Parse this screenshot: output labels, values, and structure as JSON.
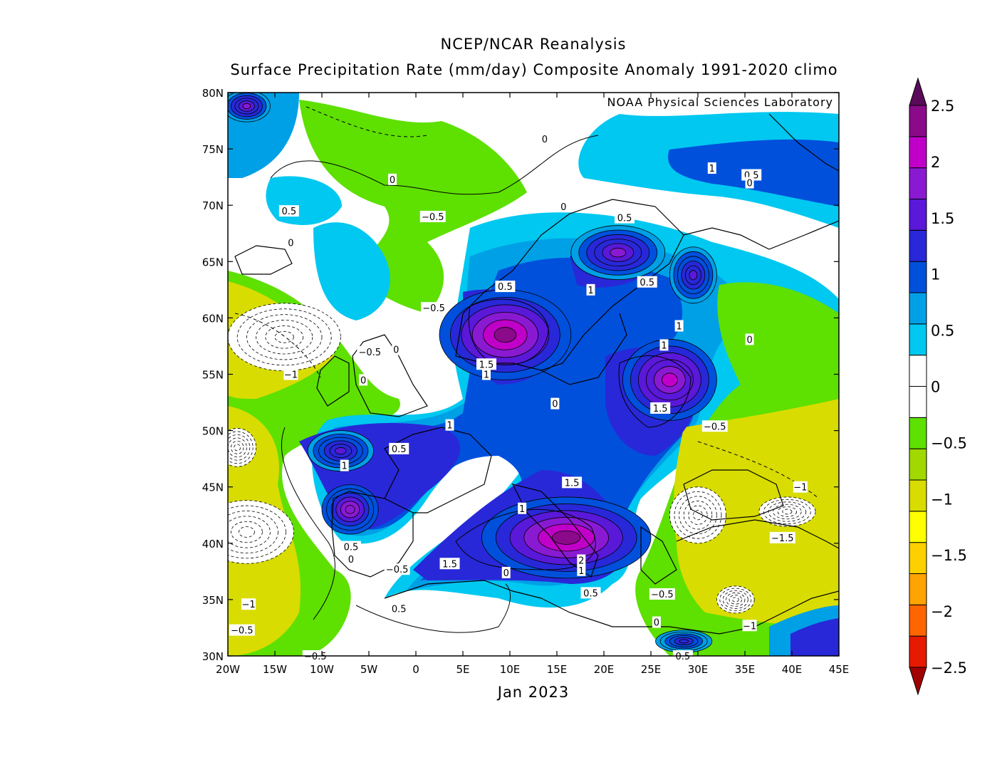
{
  "header": {
    "title": "NCEP/NCAR Reanalysis",
    "subtitle": "Surface Precipitation Rate (mm/day) Composite Anomaly 1991-2020 climo",
    "credit": "NOAA Physical Sciences Laboratory"
  },
  "footer": {
    "period": "Jan 2023"
  },
  "map": {
    "lon_range": [
      -20,
      45
    ],
    "lat_range": [
      30,
      80
    ],
    "lon_ticks": [
      "20W",
      "15W",
      "10W",
      "5W",
      "0",
      "5E",
      "10E",
      "15E",
      "20E",
      "25E",
      "30E",
      "35E",
      "40E",
      "45E"
    ],
    "lat_ticks": [
      "30N",
      "35N",
      "40N",
      "45N",
      "50N",
      "55N",
      "60N",
      "65N",
      "70N",
      "75N",
      "80N"
    ],
    "contour_labels": [
      {
        "text": "0",
        "lon": -2.5,
        "lat": 72.3
      },
      {
        "text": "0.5",
        "lon": -13.5,
        "lat": 69.5
      },
      {
        "text": "0",
        "lon": -13.3,
        "lat": 66.7
      },
      {
        "text": "-0.5",
        "lon": 1.8,
        "lat": 69.0
      },
      {
        "text": "0",
        "lon": 13.7,
        "lat": 75.9
      },
      {
        "text": "0",
        "lon": 15.7,
        "lat": 69.9
      },
      {
        "text": "0.5",
        "lon": 22.2,
        "lat": 68.9
      },
      {
        "text": "1",
        "lon": 31.5,
        "lat": 73.3
      },
      {
        "text": "0.5",
        "lon": 35.7,
        "lat": 72.7
      },
      {
        "text": "0",
        "lon": 35.5,
        "lat": 72.0
      },
      {
        "text": "0.5",
        "lon": 9.5,
        "lat": 62.8
      },
      {
        "text": "1",
        "lon": 18.6,
        "lat": 62.5
      },
      {
        "text": "0.5",
        "lon": 24.6,
        "lat": 63.2
      },
      {
        "text": "-0.5",
        "lon": 1.9,
        "lat": 60.9
      },
      {
        "text": "1",
        "lon": 28.0,
        "lat": 59.3
      },
      {
        "text": "1",
        "lon": 26.4,
        "lat": 57.6
      },
      {
        "text": "0",
        "lon": 35.5,
        "lat": 58.1
      },
      {
        "text": "-0.5",
        "lon": -4.9,
        "lat": 57.0
      },
      {
        "text": "0",
        "lon": -2.1,
        "lat": 57.2
      },
      {
        "text": "1.5",
        "lon": 7.5,
        "lat": 55.9
      },
      {
        "text": "1",
        "lon": 7.5,
        "lat": 55.0
      },
      {
        "text": "-1",
        "lon": -13.3,
        "lat": 55.0
      },
      {
        "text": "0",
        "lon": -5.6,
        "lat": 54.5
      },
      {
        "text": "0",
        "lon": 14.8,
        "lat": 52.4
      },
      {
        "text": "1.5",
        "lon": 26.0,
        "lat": 52.0
      },
      {
        "text": "-0.5",
        "lon": 31.8,
        "lat": 50.4
      },
      {
        "text": "1",
        "lon": 3.6,
        "lat": 50.5
      },
      {
        "text": "0.5",
        "lon": -1.8,
        "lat": 48.4
      },
      {
        "text": "1",
        "lon": -7.6,
        "lat": 46.9
      },
      {
        "text": "1.5",
        "lon": 16.6,
        "lat": 45.4
      },
      {
        "text": "-1",
        "lon": 40.9,
        "lat": 45.0
      },
      {
        "text": "1",
        "lon": 11.3,
        "lat": 43.1
      },
      {
        "text": "-1.5",
        "lon": 39.0,
        "lat": 40.5
      },
      {
        "text": "0.5",
        "lon": -6.9,
        "lat": 39.7
      },
      {
        "text": "0",
        "lon": -6.9,
        "lat": 38.6
      },
      {
        "text": "-0.5",
        "lon": -2.0,
        "lat": 37.7
      },
      {
        "text": "1.5",
        "lon": 3.6,
        "lat": 38.2
      },
      {
        "text": "2",
        "lon": 17.6,
        "lat": 38.5
      },
      {
        "text": "1",
        "lon": 17.6,
        "lat": 37.6
      },
      {
        "text": "0",
        "lon": 9.6,
        "lat": 37.4
      },
      {
        "text": "0.5",
        "lon": 18.6,
        "lat": 35.6
      },
      {
        "text": "-0.5",
        "lon": 26.2,
        "lat": 35.5
      },
      {
        "text": "-1",
        "lon": -17.8,
        "lat": 34.6
      },
      {
        "text": "0.5",
        "lon": -1.8,
        "lat": 34.2
      },
      {
        "text": "0",
        "lon": 25.6,
        "lat": 33.0
      },
      {
        "text": "-1",
        "lon": 35.5,
        "lat": 32.7
      },
      {
        "text": "-0.5",
        "lon": -18.5,
        "lat": 32.3
      },
      {
        "text": "-0.5",
        "lon": -10.7,
        "lat": 30.0
      },
      {
        "text": "0.5",
        "lon": 28.4,
        "lat": 30.0
      }
    ],
    "blobs": [
      {
        "lon": 9.5,
        "lat": 58.5,
        "rx": 7,
        "ry": 4,
        "level": 2.2
      },
      {
        "lon": 16,
        "lat": 40.5,
        "rx": 9,
        "ry": 3.6,
        "level": 2.1
      },
      {
        "lon": 27,
        "lat": 54.5,
        "rx": 5,
        "ry": 3.6,
        "level": 1.9
      },
      {
        "lon": -7,
        "lat": 43.0,
        "rx": 3,
        "ry": 2.2,
        "level": 1.7
      },
      {
        "lon": -8,
        "lat": 48.2,
        "rx": 3.5,
        "ry": 1.8,
        "level": 1.4
      },
      {
        "lon": 21.5,
        "lat": 65.8,
        "rx": 5,
        "ry": 2.4,
        "level": 1.6
      },
      {
        "lon": 29.5,
        "lat": 63.8,
        "rx": 2.5,
        "ry": 2.5,
        "level": 1.4
      },
      {
        "lon": 28.5,
        "lat": 31.3,
        "rx": 3,
        "ry": 1.0,
        "level": 1.2
      },
      {
        "lon": -18,
        "lat": 78.8,
        "rx": 2.5,
        "ry": 1.4,
        "level": 1.6
      },
      {
        "lon": 39.5,
        "lat": 42.8,
        "rx": 3,
        "ry": 1.3,
        "level": -2.1
      },
      {
        "lon": 34,
        "lat": 35.0,
        "rx": 2,
        "ry": 1.2,
        "level": -1.8
      },
      {
        "lon": -18,
        "lat": 41.0,
        "rx": 5,
        "ry": 2.8,
        "level": -1.3
      },
      {
        "lon": -14,
        "lat": 58.3,
        "rx": 6,
        "ry": 3,
        "level": -1.2
      },
      {
        "lon": -19,
        "lat": 48.5,
        "rx": 2,
        "ry": 1.7,
        "level": -1.8
      },
      {
        "lon": 30,
        "lat": 42.5,
        "rx": 3,
        "ry": 2.5,
        "level": -1.1
      }
    ]
  },
  "colorbar": {
    "labels": [
      "2.5",
      "2",
      "1.5",
      "1",
      "0.5",
      "0",
      "-0.5",
      "-1",
      "-1.5",
      "-2",
      "-2.5"
    ],
    "colors": [
      "#a00000",
      "#e61a00",
      "#ff6600",
      "#ffa400",
      "#ffd000",
      "#ffff00",
      "#d8dc00",
      "#a0d800",
      "#5ee000",
      "#ffffff",
      "#ffffff",
      "#00c8f0",
      "#00a0e6",
      "#0050dc",
      "#2828d8",
      "#5a18d8",
      "#8a1ad2",
      "#c000c8",
      "#8a0a8a",
      "#5a0a5a"
    ]
  }
}
